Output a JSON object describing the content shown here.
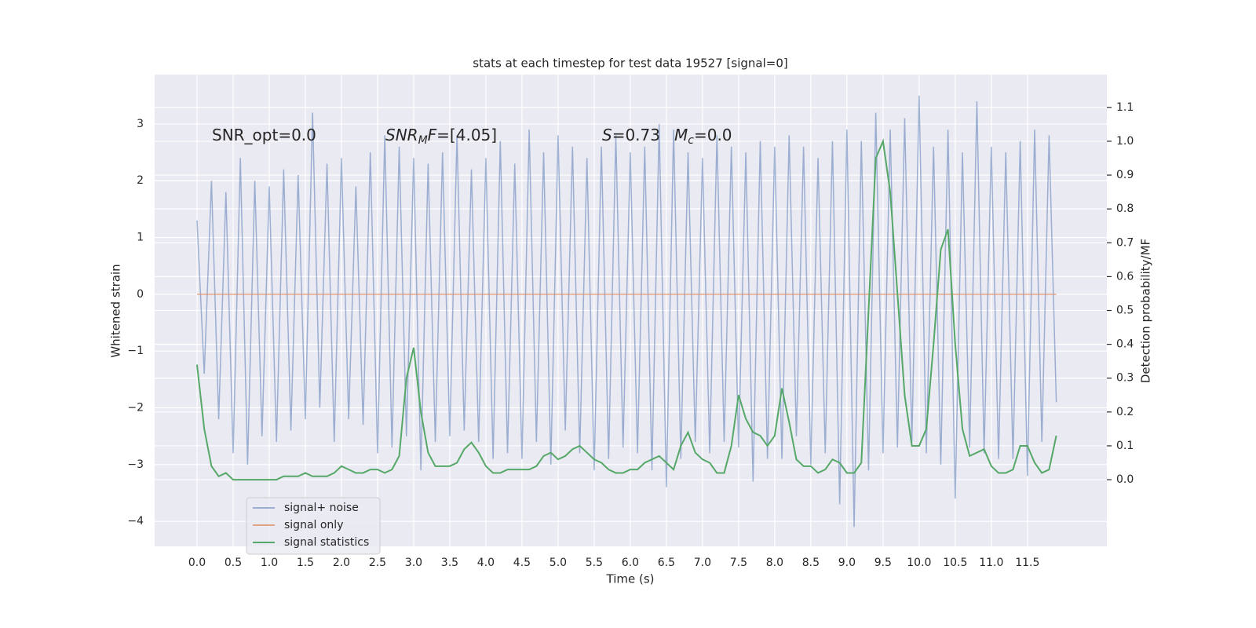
{
  "chart_data": {
    "type": "line",
    "title": "stats at each timestep for test data 19527 [signal=0]",
    "xlabel": "Time (s)",
    "ylabel": "Whitened strain",
    "y2label": "Detection probability/MF",
    "annotations": [
      [
        {
          "t": "SNR_opt=0.0"
        }
      ],
      [
        {
          "t": "SNR",
          "italic": true
        },
        {
          "t": "M",
          "italic": true,
          "sub": true
        },
        {
          "t": "F",
          "italic": true
        },
        {
          "t": "=[4.05]"
        }
      ],
      [
        {
          "t": "S",
          "italic": true
        },
        {
          "t": "=0.73"
        }
      ],
      [
        {
          "t": "M",
          "italic": true
        },
        {
          "t": "c",
          "italic": true,
          "sub": true
        },
        {
          "t": "=0.0"
        }
      ]
    ],
    "x": [
      0,
      0.1,
      0.2,
      0.3,
      0.4,
      0.5,
      0.6,
      0.7,
      0.8,
      0.9,
      1,
      1.1,
      1.2,
      1.3,
      1.4,
      1.5,
      1.6,
      1.7,
      1.8,
      1.9,
      2,
      2.1,
      2.2,
      2.3,
      2.4,
      2.5,
      2.6,
      2.7,
      2.8,
      2.9,
      3,
      3.1,
      3.2,
      3.3,
      3.4,
      3.5,
      3.6,
      3.7,
      3.8,
      3.9,
      4,
      4.1,
      4.2,
      4.3,
      4.4,
      4.5,
      4.6,
      4.7,
      4.8,
      4.9,
      5,
      5.1,
      5.2,
      5.3,
      5.4,
      5.5,
      5.6,
      5.7,
      5.8,
      5.9,
      6,
      6.1,
      6.2,
      6.3,
      6.4,
      6.5,
      6.6,
      6.7,
      6.8,
      6.9,
      7,
      7.1,
      7.2,
      7.3,
      7.4,
      7.5,
      7.6,
      7.7,
      7.8,
      7.9,
      8,
      8.1,
      8.2,
      8.3,
      8.4,
      8.5,
      8.6,
      8.7,
      8.8,
      8.9,
      9,
      9.1,
      9.2,
      9.3,
      9.4,
      9.5,
      9.6,
      9.7,
      9.8,
      9.9,
      10,
      10.1,
      10.2,
      10.3,
      10.4,
      10.5,
      10.6,
      10.7,
      10.8,
      10.9,
      11,
      11.1,
      11.2,
      11.3,
      11.4,
      11.5,
      11.6,
      11.7,
      11.8,
      11.9
    ],
    "series": [
      {
        "name": "signal+ noise",
        "color": "#4c72b0",
        "opacity": 0.5,
        "axis": "y",
        "values": [
          1.3,
          -1.4,
          2.0,
          -2.2,
          1.8,
          -2.8,
          2.4,
          -3.0,
          2.0,
          -2.5,
          1.9,
          -2.6,
          2.2,
          -2.4,
          2.1,
          -2.2,
          3.2,
          -2.0,
          2.3,
          -2.6,
          2.4,
          -2.2,
          1.9,
          -2.3,
          2.5,
          -2.8,
          2.8,
          -2.7,
          2.6,
          -2.5,
          2.4,
          -3.1,
          2.3,
          -2.6,
          2.5,
          -2.5,
          2.8,
          -2.4,
          2.2,
          -2.6,
          2.4,
          -2.9,
          2.7,
          -2.8,
          2.3,
          -2.9,
          2.9,
          -2.6,
          2.5,
          -3.0,
          2.8,
          -2.4,
          2.6,
          -2.8,
          2.4,
          -3.1,
          2.6,
          -2.9,
          2.8,
          -2.7,
          2.5,
          -2.8,
          2.6,
          -3.1,
          3.0,
          -3.4,
          2.9,
          -2.9,
          2.5,
          -2.6,
          2.4,
          -2.8,
          2.8,
          -2.6,
          2.6,
          -2.7,
          2.5,
          -3.3,
          2.7,
          -2.9,
          2.6,
          -2.9,
          2.8,
          -2.5,
          2.6,
          -3.0,
          2.4,
          -2.8,
          2.7,
          -3.7,
          2.9,
          -4.1,
          2.7,
          -3.1,
          3.2,
          -2.8,
          2.9,
          -2.7,
          3.1,
          -2.6,
          3.5,
          -2.8,
          2.6,
          -3.0,
          2.9,
          -3.6,
          2.5,
          -2.7,
          3.4,
          -2.8,
          2.6,
          -2.9,
          2.5,
          -2.9,
          2.7,
          -3.2,
          2.9,
          -2.6,
          2.8,
          -1.9
        ]
      },
      {
        "name": "signal only",
        "color": "#dd8452",
        "opacity": 0.7,
        "axis": "y",
        "values": [
          0,
          0,
          0,
          0,
          0,
          0,
          0,
          0,
          0,
          0,
          0,
          0,
          0,
          0,
          0,
          0,
          0,
          0,
          0,
          0,
          0,
          0,
          0,
          0,
          0,
          0,
          0,
          0,
          0,
          0,
          0,
          0,
          0,
          0,
          0,
          0,
          0,
          0,
          0,
          0,
          0,
          0,
          0,
          0,
          0,
          0,
          0,
          0,
          0,
          0,
          0,
          0,
          0,
          0,
          0,
          0,
          0,
          0,
          0,
          0,
          0,
          0,
          0,
          0,
          0,
          0,
          0,
          0,
          0,
          0,
          0,
          0,
          0,
          0,
          0,
          0,
          0,
          0,
          0,
          0,
          0,
          0,
          0,
          0,
          0,
          0,
          0,
          0,
          0,
          0,
          0,
          0,
          0,
          0,
          0,
          0,
          0,
          0,
          0,
          0,
          0,
          0,
          0,
          0,
          0,
          0,
          0,
          0,
          0,
          0,
          0,
          0,
          0,
          0,
          0,
          0,
          0,
          0,
          0,
          0
        ]
      },
      {
        "name": "signal statistics",
        "color": "#55a868",
        "opacity": 1,
        "axis": "y2",
        "values": [
          0.34,
          0.15,
          0.04,
          0.01,
          0.02,
          0,
          0,
          0,
          0,
          0,
          0,
          0,
          0.01,
          0.01,
          0.01,
          0.02,
          0.01,
          0.01,
          0.01,
          0.02,
          0.04,
          0.03,
          0.02,
          0.02,
          0.03,
          0.03,
          0.02,
          0.03,
          0.07,
          0.3,
          0.39,
          0.2,
          0.08,
          0.04,
          0.04,
          0.04,
          0.05,
          0.09,
          0.11,
          0.08,
          0.04,
          0.02,
          0.02,
          0.03,
          0.03,
          0.03,
          0.03,
          0.04,
          0.07,
          0.08,
          0.06,
          0.07,
          0.09,
          0.1,
          0.08,
          0.06,
          0.05,
          0.03,
          0.02,
          0.02,
          0.03,
          0.03,
          0.05,
          0.06,
          0.07,
          0.05,
          0.03,
          0.1,
          0.14,
          0.08,
          0.06,
          0.05,
          0.02,
          0.02,
          0.1,
          0.25,
          0.18,
          0.14,
          0.13,
          0.1,
          0.13,
          0.27,
          0.17,
          0.06,
          0.04,
          0.04,
          0.02,
          0.03,
          0.06,
          0.05,
          0.02,
          0.02,
          0.05,
          0.5,
          0.95,
          1.0,
          0.85,
          0.55,
          0.25,
          0.1,
          0.1,
          0.15,
          0.4,
          0.68,
          0.74,
          0.4,
          0.15,
          0.07,
          0.08,
          0.09,
          0.04,
          0.02,
          0.02,
          0.03,
          0.1,
          0.1,
          0.05,
          0.02,
          0.03,
          0.13
        ]
      }
    ],
    "xlim": [
      -0.587,
      12.6
    ],
    "xticks": [
      {
        "value": 0,
        "label": "0.0"
      },
      0.5,
      {
        "value": 1,
        "label": "1.0"
      },
      1.5,
      {
        "value": 2,
        "label": "2.0"
      },
      2.5,
      {
        "value": 3,
        "label": "3.0"
      },
      3.5,
      {
        "value": 4,
        "label": "4.0"
      },
      4.5,
      {
        "value": 5,
        "label": "5.0"
      },
      5.5,
      {
        "value": 6,
        "label": "6.0"
      },
      6.5,
      {
        "value": 7,
        "label": "7.0"
      },
      7.5,
      {
        "value": 8,
        "label": "8.0"
      },
      8.5,
      {
        "value": 9,
        "label": "9.0"
      },
      9.5,
      {
        "value": 10,
        "label": "10.0"
      },
      10.5,
      {
        "value": 11,
        "label": "11.0"
      },
      11.5
    ],
    "ylim": [
      -4.44,
      3.87
    ],
    "yticks": [
      {
        "value": -4,
        "label": "−4"
      },
      {
        "value": -3,
        "label": "−3"
      },
      {
        "value": -2,
        "label": "−2"
      },
      {
        "value": -1,
        "label": "−1"
      },
      0,
      1,
      2,
      3
    ],
    "y2lim": [
      -0.197,
      1.197
    ],
    "y2ticks": [
      {
        "value": 0,
        "label": "0.0"
      },
      0.1,
      0.2,
      0.3,
      0.4,
      0.5,
      0.6,
      0.7,
      0.8,
      0.9,
      {
        "value": 1,
        "label": "1.0"
      },
      1.1
    ],
    "grid": true,
    "legend": "lower left"
  }
}
